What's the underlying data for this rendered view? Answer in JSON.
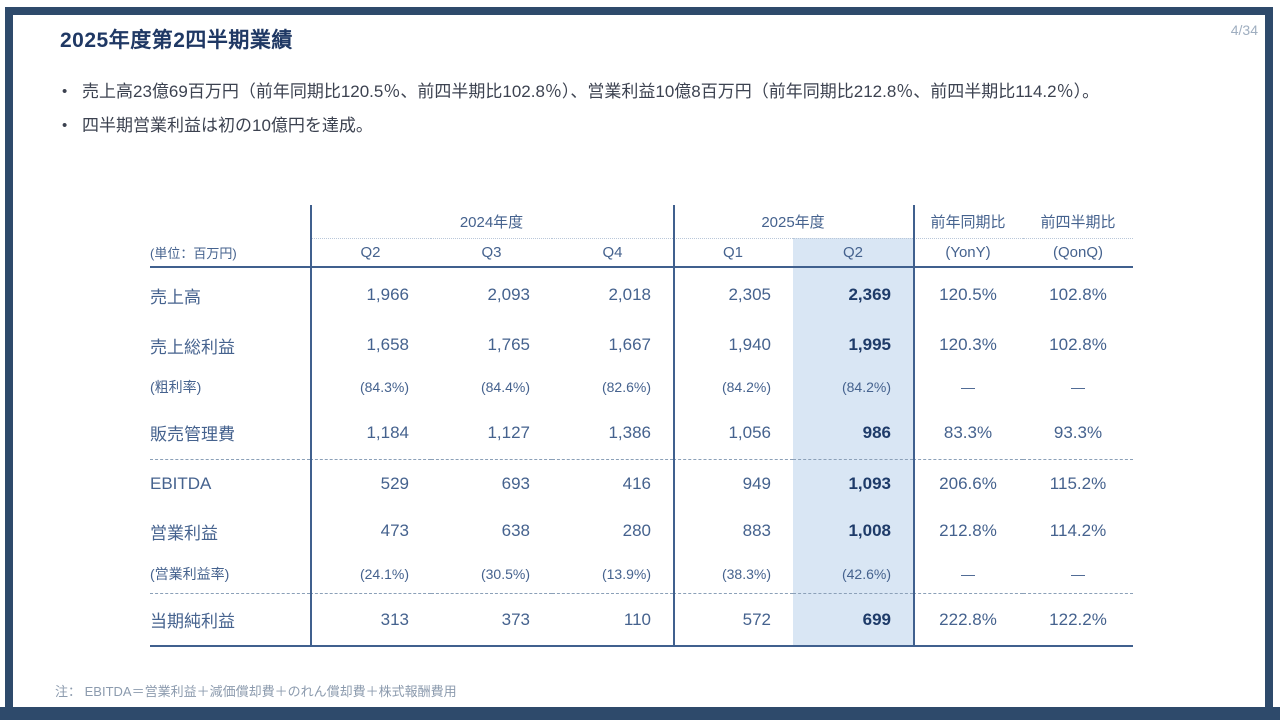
{
  "page": {
    "number_label": "4/34"
  },
  "title": "2025年度第2四半期業績",
  "bullet_char": "•",
  "bullets": [
    "売上高23億69百万円（前年同期比120.5％、前四半期比102.8％）、営業利益10億8百万円（前年同期比212.8％、前四半期比114.2％）。",
    "四半期営業利益は初の10億円を達成。"
  ],
  "table": {
    "unit_label": "(単位：百万円)",
    "col_groups": [
      {
        "label": "2024年度",
        "quarters": [
          "Q2",
          "Q3",
          "Q4"
        ]
      },
      {
        "label": "2025年度",
        "quarters": [
          "Q1",
          "Q2"
        ]
      }
    ],
    "ratio_headers": [
      {
        "top": "前年同期比",
        "sub": "(YonY)"
      },
      {
        "top": "前四半期比",
        "sub": "(QonQ)"
      }
    ],
    "highlight_column": "2025年度 Q2",
    "rows": [
      {
        "label": "売上高",
        "style": "main",
        "separator": false,
        "values": [
          "1,966",
          "2,093",
          "2,018",
          "2,305",
          "2,369",
          "120.5%",
          "102.8%"
        ]
      },
      {
        "label": "売上総利益",
        "style": "main",
        "separator": false,
        "values": [
          "1,658",
          "1,765",
          "1,667",
          "1,940",
          "1,995",
          "120.3%",
          "102.8%"
        ]
      },
      {
        "label": "(粗利率)",
        "style": "sub",
        "separator": false,
        "values": [
          "(84.3%)",
          "(84.4%)",
          "(82.6%)",
          "(84.2%)",
          "(84.2%)",
          "—",
          "—"
        ]
      },
      {
        "label": "販売管理費",
        "style": "main",
        "separator": false,
        "values": [
          "1,184",
          "1,127",
          "1,386",
          "1,056",
          "986",
          "83.3%",
          "93.3%"
        ]
      },
      {
        "label": "EBITDA",
        "style": "main",
        "separator": true,
        "values": [
          "529",
          "693",
          "416",
          "949",
          "1,093",
          "206.6%",
          "115.2%"
        ]
      },
      {
        "label": "営業利益",
        "style": "main",
        "separator": false,
        "values": [
          "473",
          "638",
          "280",
          "883",
          "1,008",
          "212.8%",
          "114.2%"
        ]
      },
      {
        "label": "(営業利益率)",
        "style": "sub",
        "separator": false,
        "values": [
          "(24.1%)",
          "(30.5%)",
          "(13.9%)",
          "(38.3%)",
          "(42.6%)",
          "—",
          "—"
        ]
      },
      {
        "label": "当期純利益",
        "style": "main",
        "separator": true,
        "values": [
          "313",
          "373",
          "110",
          "572",
          "699",
          "222.8%",
          "122.2%"
        ]
      }
    ]
  },
  "footnote": "注： EBITDA＝営業利益＋減価償却費＋のれん償却費＋株式報酬費用",
  "colors": {
    "frame": "#2e4a6b",
    "title_text": "#1f3864",
    "table_text": "#45628e",
    "table_bold_text": "#1e3b69",
    "highlight_bg": "#d9e6f4"
  }
}
